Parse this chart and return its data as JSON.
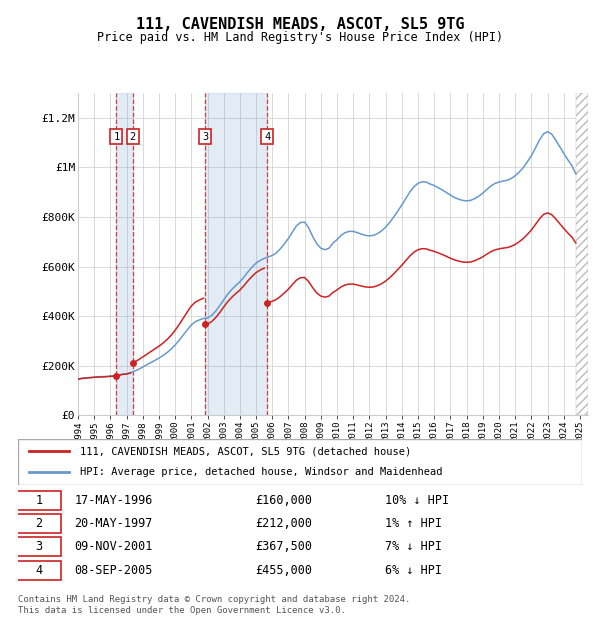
{
  "title": "111, CAVENDISH MEADS, ASCOT, SL5 9TG",
  "subtitle": "Price paid vs. HM Land Registry's House Price Index (HPI)",
  "xlim_start": 1994.0,
  "xlim_end": 2025.5,
  "ylim_min": 0,
  "ylim_max": 1300000,
  "yticks": [
    0,
    200000,
    400000,
    600000,
    800000,
    1000000,
    1200000
  ],
  "ytick_labels": [
    "£0",
    "£200K",
    "£400K",
    "£600K",
    "£800K",
    "£1M",
    "£1.2M"
  ],
  "xticks": [
    1994,
    1995,
    1996,
    1997,
    1998,
    1999,
    2000,
    2001,
    2002,
    2003,
    2004,
    2005,
    2006,
    2007,
    2008,
    2009,
    2010,
    2011,
    2012,
    2013,
    2014,
    2015,
    2016,
    2017,
    2018,
    2019,
    2020,
    2021,
    2022,
    2023,
    2024,
    2025
  ],
  "hpi_color": "#6699cc",
  "price_color": "#cc2222",
  "grid_color": "#cccccc",
  "sales": [
    {
      "num": 1,
      "date": "17-MAY-1996",
      "year": 1996.37,
      "price": 160000,
      "hpi_pct": "10% ↓ HPI"
    },
    {
      "num": 2,
      "date": "20-MAY-1997",
      "year": 1997.38,
      "price": 212000,
      "hpi_pct": "1% ↑ HPI"
    },
    {
      "num": 3,
      "date": "09-NOV-2001",
      "year": 2001.86,
      "price": 367500,
      "hpi_pct": "7% ↓ HPI"
    },
    {
      "num": 4,
      "date": "08-SEP-2005",
      "year": 2005.69,
      "price": 455000,
      "hpi_pct": "6% ↓ HPI"
    }
  ],
  "footer_text": "Contains HM Land Registry data © Crown copyright and database right 2024.\nThis data is licensed under the Open Government Licence v3.0.",
  "legend_label_price": "111, CAVENDISH MEADS, ASCOT, SL5 9TG (detached house)",
  "legend_label_hpi": "HPI: Average price, detached house, Windsor and Maidenhead",
  "hpi_data": [
    [
      1994.0,
      147000
    ],
    [
      1994.25,
      150000
    ],
    [
      1994.5,
      151500
    ],
    [
      1994.75,
      153000
    ],
    [
      1995.0,
      154500
    ],
    [
      1995.25,
      155800
    ],
    [
      1995.5,
      156400
    ],
    [
      1995.75,
      157200
    ],
    [
      1996.0,
      158500
    ],
    [
      1996.25,
      160000
    ],
    [
      1996.5,
      162500
    ],
    [
      1996.75,
      166500
    ],
    [
      1997.0,
      168000
    ],
    [
      1997.25,
      172000
    ],
    [
      1997.5,
      178500
    ],
    [
      1997.75,
      186000
    ],
    [
      1998.0,
      195000
    ],
    [
      1998.25,
      204000
    ],
    [
      1998.5,
      213000
    ],
    [
      1998.75,
      222000
    ],
    [
      1999.0,
      231000
    ],
    [
      1999.25,
      241000
    ],
    [
      1999.5,
      253000
    ],
    [
      1999.75,
      267000
    ],
    [
      2000.0,
      284000
    ],
    [
      2000.25,
      303000
    ],
    [
      2000.5,
      324000
    ],
    [
      2000.75,
      345000
    ],
    [
      2001.0,
      365000
    ],
    [
      2001.25,
      378000
    ],
    [
      2001.5,
      385000
    ],
    [
      2001.75,
      391000
    ],
    [
      2002.0,
      393000
    ],
    [
      2002.25,
      403000
    ],
    [
      2002.5,
      420000
    ],
    [
      2002.75,
      442000
    ],
    [
      2003.0,
      466000
    ],
    [
      2003.25,
      489000
    ],
    [
      2003.5,
      508000
    ],
    [
      2003.75,
      524000
    ],
    [
      2004.0,
      539000
    ],
    [
      2004.25,
      558000
    ],
    [
      2004.5,
      579000
    ],
    [
      2004.75,
      598000
    ],
    [
      2005.0,
      614000
    ],
    [
      2005.25,
      625000
    ],
    [
      2005.5,
      633000
    ],
    [
      2005.75,
      639000
    ],
    [
      2006.0,
      645000
    ],
    [
      2006.25,
      655000
    ],
    [
      2006.5,
      672000
    ],
    [
      2006.75,
      692000
    ],
    [
      2007.0,
      714000
    ],
    [
      2007.25,
      740000
    ],
    [
      2007.5,
      765000
    ],
    [
      2007.75,
      778000
    ],
    [
      2008.0,
      779000
    ],
    [
      2008.25,
      756000
    ],
    [
      2008.5,
      721000
    ],
    [
      2008.75,
      692000
    ],
    [
      2009.0,
      674000
    ],
    [
      2009.25,
      668000
    ],
    [
      2009.5,
      674000
    ],
    [
      2009.75,
      695000
    ],
    [
      2010.0,
      709000
    ],
    [
      2010.25,
      726000
    ],
    [
      2010.5,
      737000
    ],
    [
      2010.75,
      742000
    ],
    [
      2011.0,
      742000
    ],
    [
      2011.25,
      737000
    ],
    [
      2011.5,
      731000
    ],
    [
      2011.75,
      726000
    ],
    [
      2012.0,
      724000
    ],
    [
      2012.25,
      726000
    ],
    [
      2012.5,
      733000
    ],
    [
      2012.75,
      744000
    ],
    [
      2013.0,
      759000
    ],
    [
      2013.25,
      778000
    ],
    [
      2013.5,
      800000
    ],
    [
      2013.75,
      824000
    ],
    [
      2014.0,
      848000
    ],
    [
      2014.25,
      875000
    ],
    [
      2014.5,
      901000
    ],
    [
      2014.75,
      922000
    ],
    [
      2015.0,
      936000
    ],
    [
      2015.25,
      942000
    ],
    [
      2015.5,
      941000
    ],
    [
      2015.75,
      933000
    ],
    [
      2016.0,
      927000
    ],
    [
      2016.25,
      918000
    ],
    [
      2016.5,
      909000
    ],
    [
      2016.75,
      899000
    ],
    [
      2017.0,
      888000
    ],
    [
      2017.25,
      879000
    ],
    [
      2017.5,
      872000
    ],
    [
      2017.75,
      867000
    ],
    [
      2018.0,
      865000
    ],
    [
      2018.25,
      867000
    ],
    [
      2018.5,
      874000
    ],
    [
      2018.75,
      884000
    ],
    [
      2019.0,
      896000
    ],
    [
      2019.25,
      911000
    ],
    [
      2019.5,
      925000
    ],
    [
      2019.75,
      935000
    ],
    [
      2020.0,
      941000
    ],
    [
      2020.25,
      945000
    ],
    [
      2020.5,
      948000
    ],
    [
      2020.75,
      955000
    ],
    [
      2021.0,
      966000
    ],
    [
      2021.25,
      981000
    ],
    [
      2021.5,
      999000
    ],
    [
      2021.75,
      1022000
    ],
    [
      2022.0,
      1047000
    ],
    [
      2022.25,
      1078000
    ],
    [
      2022.5,
      1110000
    ],
    [
      2022.75,
      1135000
    ],
    [
      2023.0,
      1144000
    ],
    [
      2023.25,
      1135000
    ],
    [
      2023.5,
      1111000
    ],
    [
      2023.75,
      1084000
    ],
    [
      2024.0,
      1057000
    ],
    [
      2024.25,
      1031000
    ],
    [
      2024.5,
      1008000
    ],
    [
      2024.75,
      974000
    ]
  ]
}
